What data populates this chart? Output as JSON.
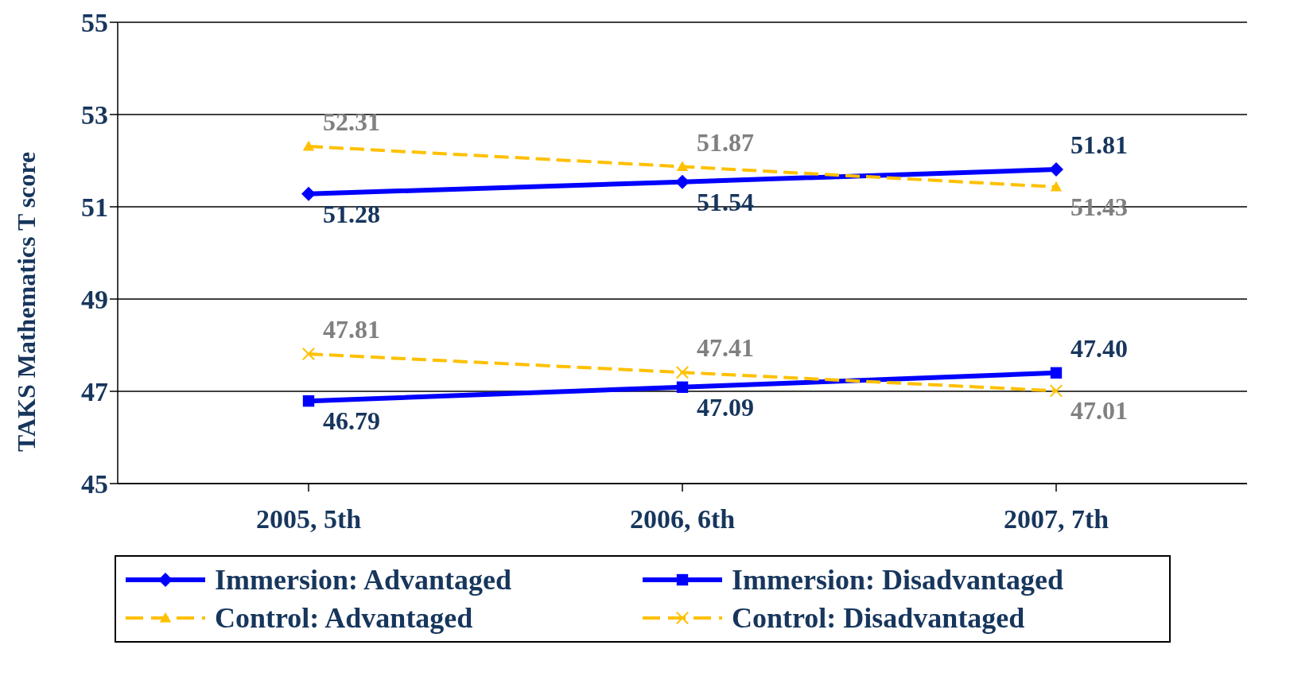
{
  "chart_data": {
    "type": "line",
    "ylabel": "TAKS Mathematics T score",
    "categories": [
      "2005, 5th",
      "2006, 6th",
      "2007, 7th"
    ],
    "series": [
      {
        "name": "Immersion: Advantaged",
        "color": "#0000ff",
        "values": [
          51.28,
          51.54,
          51.81
        ],
        "value_labels": [
          "51.28",
          "51.54",
          "51.81"
        ],
        "marker": "diamond",
        "line_style": "solid"
      },
      {
        "name": "Immersion: Disadvantaged",
        "color": "#0000ff",
        "values": [
          46.79,
          47.09,
          47.4
        ],
        "value_labels": [
          "46.79",
          "47.09",
          "47.40"
        ],
        "marker": "square",
        "line_style": "solid"
      },
      {
        "name": "Control: Advantaged",
        "color": "#ffc000",
        "values": [
          52.31,
          51.87,
          51.43
        ],
        "value_labels": [
          "52.31",
          "51.87",
          "51.43"
        ],
        "marker": "triangle",
        "line_style": "dashed"
      },
      {
        "name": "Control: Disadvantaged",
        "color": "#ffc000",
        "values": [
          47.81,
          47.41,
          47.01
        ],
        "value_labels": [
          "47.81",
          "47.41",
          "47.01"
        ],
        "marker": "cross",
        "line_style": "dashed"
      }
    ],
    "ylim": [
      45,
      55
    ],
    "yticks": [
      45,
      47,
      49,
      51,
      53,
      55
    ],
    "grid": "y",
    "legend": "bottom"
  }
}
